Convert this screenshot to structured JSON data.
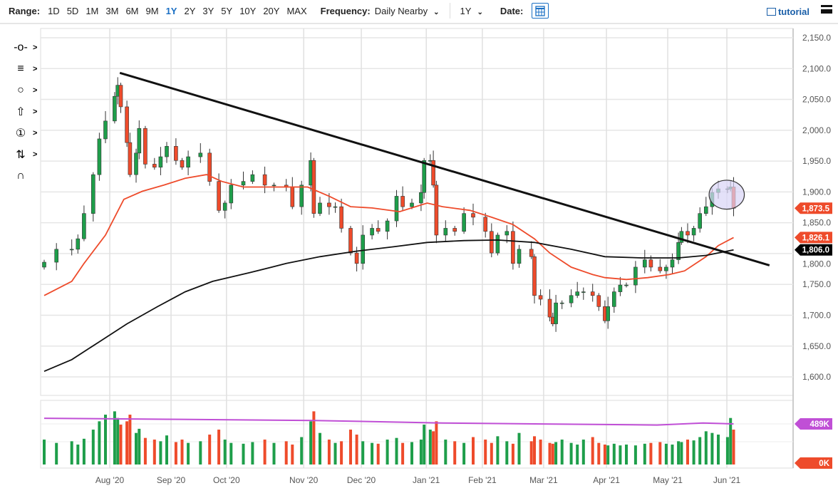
{
  "toolbar": {
    "range_label": "Range:",
    "ranges": [
      "1D",
      "5D",
      "1M",
      "3M",
      "6M",
      "9M",
      "1Y",
      "2Y",
      "3Y",
      "5Y",
      "10Y",
      "20Y",
      "MAX"
    ],
    "active_range": "1Y",
    "frequency_label": "Frequency:",
    "frequency_value": "Daily Nearby",
    "period_value": "1Y",
    "date_label": "Date:",
    "tutorial_label": "tutorial"
  },
  "tools": [
    "crosshair",
    "trend-lines",
    "shapes",
    "arrow",
    "number-marker",
    "fibonacci",
    "magnet"
  ],
  "colors": {
    "up": "#1e9e4a",
    "down": "#ee4b2b",
    "ma50": "#ee4b2b",
    "ma200": "#111111",
    "volume_avg": "#c04fd6",
    "ellipse_fill": "#d9d4f7"
  },
  "chart_data": {
    "type": "candlestick",
    "xunit": "trading day index",
    "ylim": [
      1560,
      2170
    ],
    "yticks": [
      1600,
      1650,
      1700,
      1750,
      1800,
      1850,
      1900,
      1950,
      2000,
      2050,
      2100,
      2150
    ],
    "ytick_labels": [
      "1,600.0",
      "1,650.0",
      "1,700.0",
      "1,750.0",
      "1,800.0",
      "1,850.0",
      "1,900.0",
      "1,950.0",
      "2,000.0",
      "2,050.0",
      "2,100.0",
      "2,150.0"
    ],
    "xticks": [
      {
        "day": 21.4,
        "label": "Aug '20"
      },
      {
        "day": 41.4,
        "label": "Sep '20"
      },
      {
        "day": 59.5,
        "label": "Oct '20"
      },
      {
        "day": 84.7,
        "label": "Nov '20"
      },
      {
        "day": 103.5,
        "label": "Dec '20"
      },
      {
        "day": 124.7,
        "label": "Jan '21"
      },
      {
        "day": 143,
        "label": "Feb '21"
      },
      {
        "day": 163,
        "label": "Mar '21"
      },
      {
        "day": 183.5,
        "label": "Apr '21"
      },
      {
        "day": 203.5,
        "label": "May '21"
      },
      {
        "day": 222.8,
        "label": "Jun '21"
      }
    ],
    "closes": [
      [
        0,
        1786
      ],
      [
        4,
        1807
      ],
      [
        9,
        1807
      ],
      [
        11,
        1824
      ],
      [
        13,
        1865
      ],
      [
        16,
        1928
      ],
      [
        18,
        1986
      ],
      [
        20,
        2015
      ],
      [
        23,
        2055
      ],
      [
        24,
        2073
      ],
      [
        25,
        2038
      ],
      [
        27,
        1980
      ],
      [
        28,
        1928
      ],
      [
        30,
        1963
      ],
      [
        31,
        2003
      ],
      [
        33,
        1945
      ],
      [
        36,
        1940
      ],
      [
        38,
        1957
      ],
      [
        40,
        1974
      ],
      [
        43,
        1951
      ],
      [
        45,
        1940
      ],
      [
        47,
        1957
      ],
      [
        51,
        1963
      ],
      [
        54,
        1917
      ],
      [
        57,
        1870
      ],
      [
        59,
        1882
      ],
      [
        61,
        1911
      ],
      [
        65,
        1917
      ],
      [
        68,
        1928
      ],
      [
        72,
        1911
      ],
      [
        75,
        1911
      ],
      [
        79,
        1908
      ],
      [
        81,
        1876
      ],
      [
        84,
        1911
      ],
      [
        87,
        1951
      ],
      [
        88,
        1865
      ],
      [
        90,
        1882
      ],
      [
        93,
        1876
      ],
      [
        95,
        1876
      ],
      [
        97,
        1841
      ],
      [
        100,
        1801
      ],
      [
        102,
        1784
      ],
      [
        104,
        1830
      ],
      [
        107,
        1841
      ],
      [
        109,
        1836
      ],
      [
        112,
        1853
      ],
      [
        115,
        1893
      ],
      [
        117,
        1876
      ],
      [
        120,
        1882
      ],
      [
        123,
        1899
      ],
      [
        124,
        1951
      ],
      [
        126,
        1951
      ],
      [
        127,
        1911
      ],
      [
        128,
        1830
      ],
      [
        131,
        1841
      ],
      [
        134,
        1836
      ],
      [
        137,
        1865
      ],
      [
        140,
        1859
      ],
      [
        144,
        1836
      ],
      [
        146,
        1801
      ],
      [
        148,
        1830
      ],
      [
        151,
        1836
      ],
      [
        153,
        1784
      ],
      [
        155,
        1807
      ],
      [
        159,
        1795
      ],
      [
        160,
        1732
      ],
      [
        162,
        1726
      ],
      [
        165,
        1697
      ],
      [
        166,
        1686
      ],
      [
        167,
        1720
      ],
      [
        169,
        1720
      ],
      [
        172,
        1732
      ],
      [
        174,
        1738
      ],
      [
        176,
        1738
      ],
      [
        179,
        1732
      ],
      [
        181,
        1714
      ],
      [
        183,
        1691
      ],
      [
        184,
        1714
      ],
      [
        186,
        1738
      ],
      [
        188,
        1749
      ],
      [
        190,
        1749
      ],
      [
        193,
        1778
      ],
      [
        196,
        1790
      ],
      [
        198,
        1778
      ],
      [
        201,
        1772
      ],
      [
        203,
        1778
      ],
      [
        205,
        1790
      ],
      [
        207,
        1818
      ],
      [
        208,
        1836
      ],
      [
        210,
        1830
      ],
      [
        212,
        1841
      ],
      [
        214,
        1865
      ],
      [
        216,
        1876
      ],
      [
        218,
        1899
      ],
      [
        220,
        1905
      ],
      [
        223,
        1905
      ],
      [
        224,
        1908
      ],
      [
        225,
        1873.5
      ]
    ],
    "volume_k": [
      300,
      260,
      280,
      240,
      310,
      420,
      520,
      600,
      640,
      560,
      480,
      520,
      600,
      380,
      430,
      320,
      300,
      280,
      350,
      270,
      300,
      260,
      280,
      360,
      420,
      300,
      260,
      250,
      270,
      300,
      260,
      280,
      240,
      330,
      520,
      640,
      380,
      300,
      260,
      280,
      420,
      360,
      280,
      260,
      250,
      300,
      320,
      260,
      270,
      300,
      480,
      420,
      400,
      520,
      300,
      280,
      260,
      330,
      300,
      260,
      340,
      280,
      250,
      380,
      280,
      340,
      300,
      260,
      250,
      270,
      300,
      260,
      240,
      300,
      330,
      260,
      240,
      230,
      250,
      230,
      240,
      230,
      250,
      260,
      270,
      250,
      240,
      280,
      270,
      300,
      290,
      330,
      400,
      380,
      360,
      330,
      560,
      420,
      300,
      310,
      240
    ],
    "volume_avg": [
      [
        0,
        557
      ],
      [
        40,
        545
      ],
      [
        88,
        530
      ],
      [
        130,
        500
      ],
      [
        170,
        485
      ],
      [
        200,
        475
      ],
      [
        215,
        500
      ],
      [
        225,
        489
      ]
    ],
    "volume_labels": {
      "avg": "489K",
      "zero": "0K"
    },
    "ma50": [
      [
        0,
        1732
      ],
      [
        9,
        1755
      ],
      [
        13,
        1784
      ],
      [
        20,
        1830
      ],
      [
        26,
        1888
      ],
      [
        32,
        1901
      ],
      [
        39,
        1911
      ],
      [
        46,
        1922
      ],
      [
        53,
        1928
      ],
      [
        58,
        1917
      ],
      [
        65,
        1908
      ],
      [
        72,
        1908
      ],
      [
        79,
        1908
      ],
      [
        86,
        1908
      ],
      [
        93,
        1893
      ],
      [
        100,
        1876
      ],
      [
        107,
        1874
      ],
      [
        116,
        1868
      ],
      [
        125,
        1882
      ],
      [
        130,
        1876
      ],
      [
        139,
        1870
      ],
      [
        146,
        1859
      ],
      [
        153,
        1847
      ],
      [
        160,
        1824
      ],
      [
        165,
        1801
      ],
      [
        172,
        1778
      ],
      [
        179,
        1766
      ],
      [
        183,
        1761
      ],
      [
        190,
        1758
      ],
      [
        197,
        1761
      ],
      [
        204,
        1766
      ],
      [
        209,
        1772
      ],
      [
        216,
        1795
      ],
      [
        220,
        1813
      ],
      [
        225,
        1826
      ]
    ],
    "ma200": [
      [
        0,
        1609
      ],
      [
        9,
        1628
      ],
      [
        18,
        1657
      ],
      [
        27,
        1686
      ],
      [
        37,
        1714
      ],
      [
        46,
        1738
      ],
      [
        55,
        1755
      ],
      [
        67,
        1769
      ],
      [
        79,
        1784
      ],
      [
        90,
        1795
      ],
      [
        102,
        1804
      ],
      [
        114,
        1811
      ],
      [
        125,
        1818
      ],
      [
        137,
        1821
      ],
      [
        148,
        1822
      ],
      [
        160,
        1818
      ],
      [
        172,
        1807
      ],
      [
        183,
        1795
      ],
      [
        195,
        1793
      ],
      [
        207,
        1793
      ],
      [
        216,
        1797
      ],
      [
        225,
        1806
      ]
    ],
    "trendline": [
      [
        24.7,
        2093
      ],
      [
        236.7,
        1781
      ]
    ],
    "ellipse": {
      "day_range": [
        217,
        228.5
      ],
      "price_range": [
        1872,
        1919
      ]
    },
    "price_tags": [
      {
        "label": "1,873.5",
        "value": 1873.5,
        "color": "#ee4b2b"
      },
      {
        "label": "1,826.1",
        "value": 1826.1,
        "color": "#ee4b2b"
      },
      {
        "label": "1,806.0",
        "value": 1806.0,
        "color": "#000000"
      }
    ]
  }
}
